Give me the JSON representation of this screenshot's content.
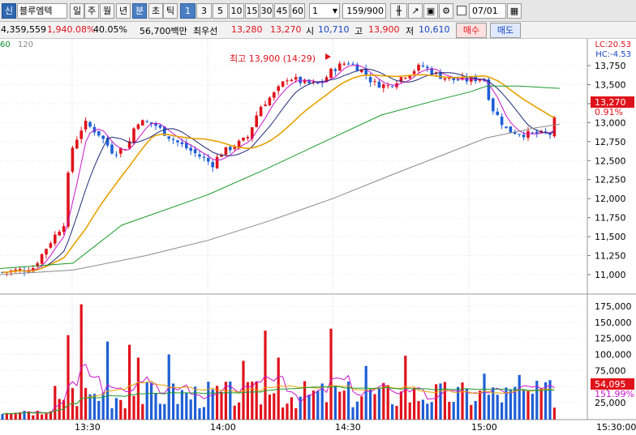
{
  "toolbar": {
    "brand": "신",
    "stock_name": "블루엠텍",
    "periods": [
      "일",
      "주",
      "월",
      "년",
      "분",
      "초",
      "틱"
    ],
    "active_period": "분",
    "intervals": [
      "1",
      "3",
      "5",
      "10",
      "15",
      "30",
      "45",
      "60"
    ],
    "active_interval": "1",
    "interval_select": "1",
    "count_value": "159",
    "count_total": "/900",
    "date_value": "07/01"
  },
  "quote": {
    "volume": "4,359,559",
    "volume_ratio": "1,940.08%",
    "turnover": "40.05%",
    "amount": "56,700백만",
    "best_bid_label": "최우선",
    "best_ask": "13,280",
    "best_bid": "13,270",
    "open_label": "시",
    "open": "10,710",
    "high_label": "고",
    "high": "13,900",
    "low_label": "저",
    "low": "10,610",
    "buy_label": "매수",
    "sell_label": "매도"
  },
  "chart": {
    "ma_labels": [
      "60",
      "120"
    ],
    "lc": "LC:20.53",
    "hc": "HC:-4.53",
    "high_annotation": "최고 13,900 (14:29)",
    "price_ticks": [
      "13,750",
      "13,500",
      "13,250",
      "13,000",
      "12,750",
      "12,500",
      "12,250",
      "12,000",
      "11,750",
      "11,500",
      "11,250",
      "11,000"
    ],
    "current_price_tag": "13,270",
    "change_tag": "0.91%",
    "volume_ticks": [
      "175,000",
      "150,000",
      "125,000",
      "100,000",
      "75,000",
      "50,000",
      "25,000"
    ],
    "volume_tag": "54,095",
    "volume_ratio_tag": "151.99%",
    "time_ticks": [
      "13:30",
      "14:00",
      "14:30",
      "15:00"
    ],
    "end_time": "15:30:00",
    "colors": {
      "up": "#e0121b",
      "down": "#1f5fd6",
      "ma5": "#c814c8",
      "ma10": "#1e2a78",
      "ma20": "#e8a000",
      "ma60": "#1a9a2a",
      "ma120": "#8a8a8a"
    }
  }
}
